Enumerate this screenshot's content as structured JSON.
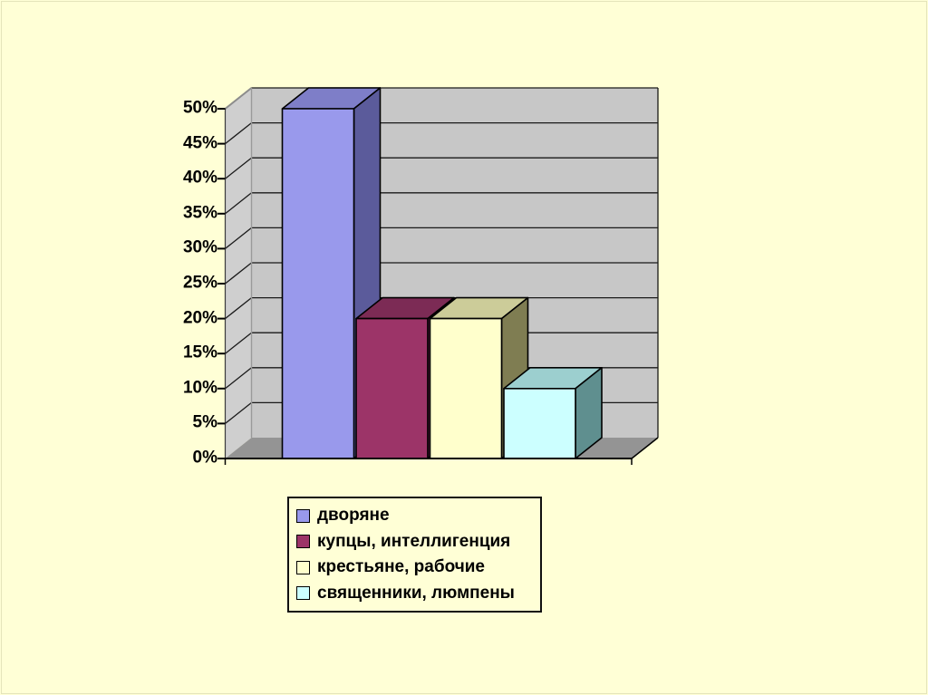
{
  "slide": {
    "background": "#FFFFD6",
    "edge_line_color": "#E4E4BA"
  },
  "chart_data": {
    "type": "bar",
    "projection": "3d",
    "title": "",
    "categories": [
      ""
    ],
    "series": [
      {
        "name": "дворяне",
        "values": [
          50
        ]
      },
      {
        "name": "купцы, интеллигенция",
        "values": [
          20
        ]
      },
      {
        "name": "крестьяне, рабочие",
        "values": [
          20
        ]
      },
      {
        "name": "священники, люмпены",
        "values": [
          10
        ]
      }
    ],
    "unit": "%",
    "ylim": [
      0,
      50
    ],
    "ytick_step": 5,
    "ytick_labels_top_to_bottom": [
      "50%",
      "45%",
      "40%",
      "35%",
      "30%",
      "25%",
      "20%",
      "15%",
      "10%",
      "5%",
      "0%"
    ],
    "grid": true,
    "legend_position": "bottom",
    "colors": {
      "series_front": [
        "#9999EC",
        "#9C3468",
        "#FFFFCC",
        "#CCFFFF"
      ],
      "series_top": [
        "#7E7EC8",
        "#7C2B55",
        "#CCCC99",
        "#9CCFCF"
      ],
      "series_side": [
        "#5B5B9B",
        "#5E2142",
        "#7F7D52",
        "#5F8F8F"
      ],
      "wall_back": "#C7C7C7",
      "wall_left": "#CFCFCF",
      "floor": "#949494",
      "outline": "#000000",
      "gridline": "#1A1A1A",
      "edge_gray": "#8C8C8C",
      "text": "#000000"
    }
  }
}
